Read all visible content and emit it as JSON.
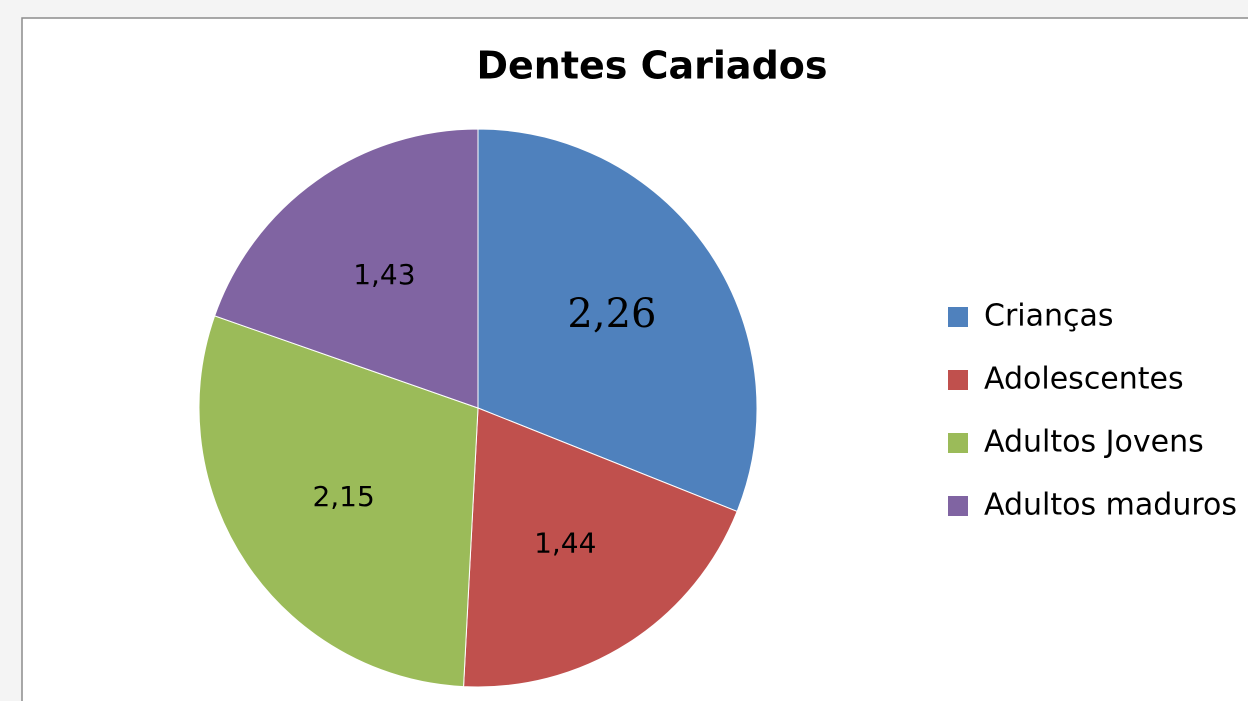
{
  "chart_data": {
    "type": "pie",
    "title": "Dentes Cariados",
    "categories": [
      "Crianças",
      "Adolescentes",
      "Adultos Jovens",
      "Adultos maduros"
    ],
    "values": [
      2.26,
      1.44,
      2.15,
      1.43
    ],
    "value_labels": [
      "2,26",
      "1,44",
      "2,15",
      "1,43"
    ],
    "colors": [
      "#4f81bd",
      "#c0504d",
      "#9bbb59",
      "#8064a2"
    ],
    "legend": "right"
  }
}
